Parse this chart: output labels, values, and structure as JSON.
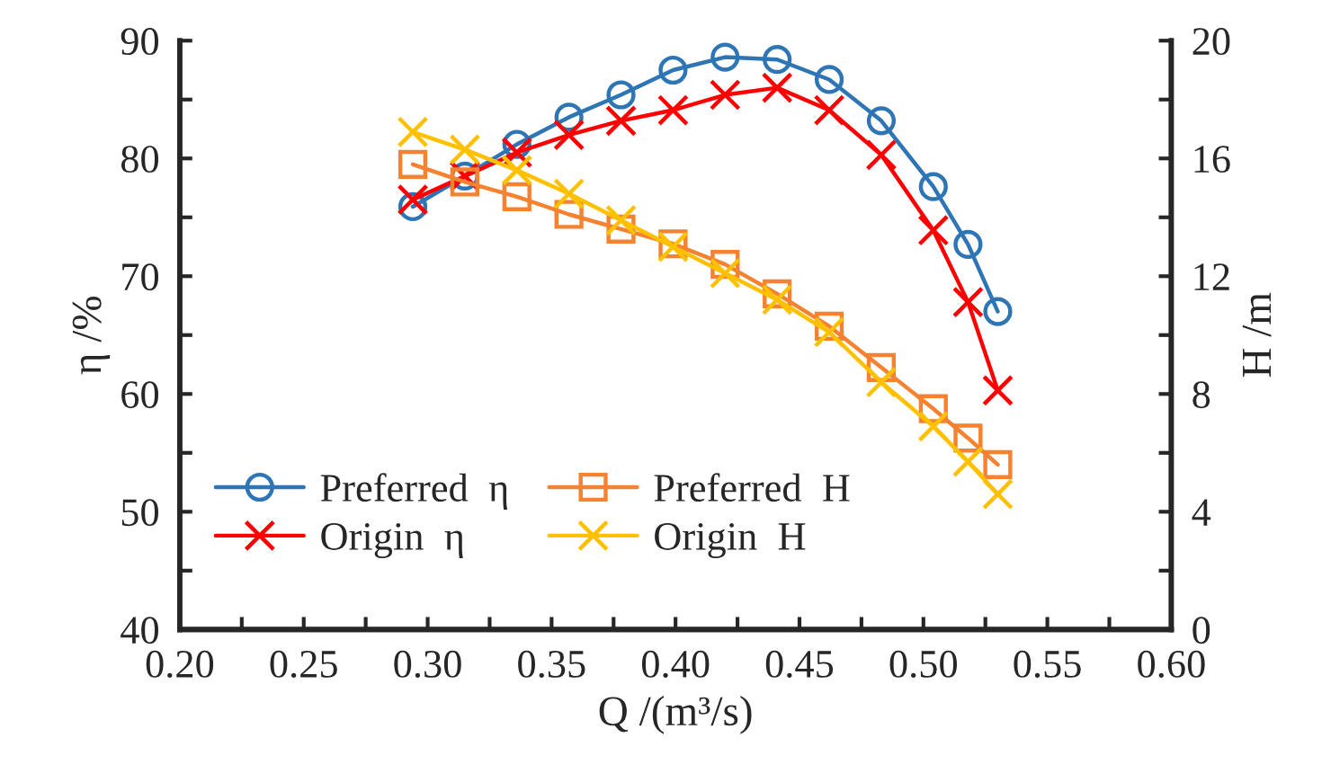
{
  "chart_data": {
    "type": "line",
    "xlabel": "Q /(m³/s)",
    "ylabel": "η /%",
    "y2label": "H /m",
    "xlim": [
      0.2,
      0.6
    ],
    "xticks": [
      {
        "value": 0.2,
        "label": "0.20"
      },
      {
        "value": 0.225,
        "label": null
      },
      {
        "value": 0.25,
        "label": "0.25"
      },
      {
        "value": 0.275,
        "label": null
      },
      {
        "value": 0.3,
        "label": "0.30"
      },
      {
        "value": 0.325,
        "label": null
      },
      {
        "value": 0.35,
        "label": "0.35"
      },
      {
        "value": 0.375,
        "label": null
      },
      {
        "value": 0.4,
        "label": "0.40"
      },
      {
        "value": 0.425,
        "label": null
      },
      {
        "value": 0.45,
        "label": "0.45"
      },
      {
        "value": 0.475,
        "label": null
      },
      {
        "value": 0.5,
        "label": "0.50"
      },
      {
        "value": 0.525,
        "label": null
      },
      {
        "value": 0.55,
        "label": "0.55"
      },
      {
        "value": 0.575,
        "label": null
      },
      {
        "value": 0.6,
        "label": "0.60"
      }
    ],
    "ylim": [
      40,
      90
    ],
    "yticks": [
      40,
      {
        "value": 45,
        "label": null
      },
      50,
      {
        "value": 55,
        "label": null
      },
      60,
      {
        "value": 65,
        "label": null
      },
      70,
      {
        "value": 75,
        "label": null
      },
      80,
      {
        "value": 85,
        "label": null
      },
      90
    ],
    "y2lim": [
      0,
      20
    ],
    "y2ticks": [
      0,
      {
        "value": 2,
        "label": null
      },
      4,
      {
        "value": 6,
        "label": null
      },
      8,
      {
        "value": 10,
        "label": null
      },
      12,
      {
        "value": 14,
        "label": null
      },
      16,
      {
        "value": 18,
        "label": null
      },
      20
    ],
    "grid": false,
    "legend": "bottom left",
    "line_style": "solid",
    "x": [
      0.294,
      0.315,
      0.336,
      0.357,
      0.378,
      0.399,
      0.42,
      0.441,
      0.462,
      0.483,
      0.504,
      0.518,
      0.53
    ],
    "series": [
      {
        "name": "Preferred  η",
        "color": "#2e75b6",
        "marker": "circle",
        "values": [
          75.9,
          78.5,
          81.2,
          83.5,
          85.4,
          87.5,
          88.6,
          88.4,
          86.7,
          83.2,
          77.6,
          72.7,
          67.0
        ]
      },
      {
        "name": "Origin  η",
        "color": "#ff0000",
        "marker": "cross",
        "values": [
          76.5,
          78.5,
          80.5,
          82.0,
          83.2,
          84.1,
          85.4,
          86.0,
          84.1,
          80.3,
          73.9,
          67.8,
          60.3
        ]
      },
      {
        "name": "Preferred  H",
        "color": "#f58231",
        "marker": "square",
        "axis": "y2",
        "values": [
          15.8,
          15.2,
          14.7,
          14.1,
          13.6,
          13.1,
          12.4,
          11.4,
          10.3,
          8.9,
          7.5,
          6.5,
          5.6
        ]
      },
      {
        "name": "Origin  H",
        "color": "#ffc000",
        "marker": "cross",
        "axis": "y2",
        "values": [
          16.9,
          16.3,
          15.6,
          14.8,
          13.9,
          13.0,
          12.1,
          11.2,
          10.1,
          8.4,
          6.9,
          5.7,
          4.6
        ]
      }
    ]
  }
}
